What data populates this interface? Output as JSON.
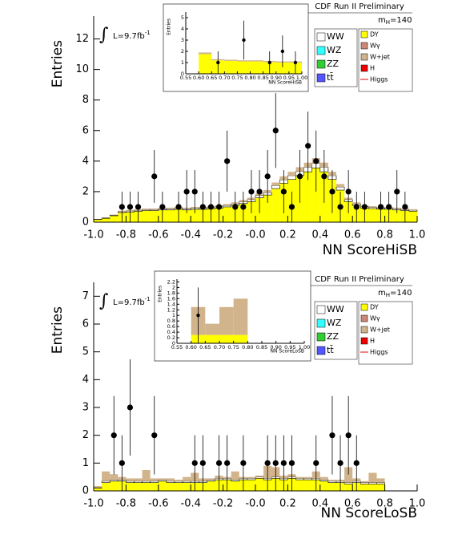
{
  "chart_data": [
    {
      "type": "stacked-histogram",
      "title": "CDF Run II Preliminary",
      "x_label": "NN ScoreHiSB",
      "y_label": "Entries",
      "mass_label": {
        "symbol": "m",
        "subscript": "H",
        "value": "=140"
      },
      "lumi_label": {
        "integral": "∫",
        "text": "L=9.7fb",
        "superscript": "-1"
      },
      "bins": [
        -1,
        -0.95,
        -0.9,
        -0.85,
        -0.8,
        -0.75,
        -0.7,
        -0.65,
        -0.6,
        -0.55,
        -0.5,
        -0.45,
        -0.4,
        -0.35,
        -0.3,
        -0.25,
        -0.2,
        -0.15,
        -0.1,
        -0.05,
        0,
        0.05,
        0.1,
        0.15,
        0.2,
        0.25,
        0.3,
        0.35,
        0.4,
        0.45,
        0.5,
        0.55,
        0.6,
        0.65,
        0.7,
        0.75,
        0.8,
        0.85,
        0.9,
        0.95,
        1
      ],
      "series": [
        {
          "name": "DY",
          "color": "#ffff00",
          "values": [
            0.17,
            0.25,
            0.42,
            0.63,
            0.67,
            0.71,
            0.76,
            0.76,
            0.8,
            0.8,
            0.84,
            0.8,
            0.84,
            0.84,
            0.88,
            0.92,
            1.0,
            1.1,
            1.22,
            1.35,
            1.6,
            1.78,
            2.2,
            2.55,
            2.8,
            3.05,
            3.3,
            3.55,
            3.3,
            2.8,
            2.1,
            1.35,
            1.1,
            0.93,
            0.89,
            0.85,
            0.85,
            0.8,
            0.76,
            0.72
          ]
        },
        {
          "name": "WW",
          "color": "#ffffff",
          "values": [
            0.02,
            0.03,
            0.04,
            0.06,
            0.07,
            0.07,
            0.07,
            0.07,
            0.08,
            0.08,
            0.08,
            0.08,
            0.08,
            0.08,
            0.09,
            0.09,
            0.1,
            0.1,
            0.12,
            0.13,
            0.15,
            0.16,
            0.2,
            0.22,
            0.25,
            0.27,
            0.3,
            0.3,
            0.3,
            0.25,
            0.2,
            0.13,
            0.1,
            0.09,
            0.08,
            0.08,
            0.08,
            0.08,
            0.07,
            0.07
          ]
        },
        {
          "name": "W+jet",
          "color": "#d2b48c",
          "values": [
            0.01,
            0.02,
            0.04,
            0.06,
            0.06,
            0.07,
            0.07,
            0.07,
            0.07,
            0.07,
            0.08,
            0.07,
            0.08,
            0.08,
            0.08,
            0.09,
            0.1,
            0.1,
            0.11,
            0.12,
            0.15,
            0.16,
            0.2,
            0.23,
            0.25,
            0.28,
            0.3,
            0.35,
            0.3,
            0.25,
            0.2,
            0.12,
            0.1,
            0.08,
            0.08,
            0.07,
            0.07,
            0.07,
            0.07,
            0.06
          ]
        }
      ],
      "legend_extra": [
        {
          "name": "WZ",
          "color": "#33ffff"
        },
        {
          "name": "ZZ",
          "color": "#33cc33"
        },
        {
          "name": "tt̄",
          "color": "#5555ff"
        },
        {
          "name": "Wγ",
          "color": "#cc8877"
        },
        {
          "name": "H",
          "color": "#ee0000"
        },
        {
          "name": "Higgs",
          "color": "#ee0000"
        }
      ],
      "data": {
        "values": [
          null,
          null,
          null,
          1,
          1,
          1,
          null,
          3,
          1,
          null,
          1,
          2,
          2,
          1,
          1,
          1,
          4,
          1,
          1,
          2,
          2,
          3,
          6,
          2,
          1,
          3,
          5,
          4,
          3,
          2,
          1,
          2,
          1,
          1,
          null,
          1,
          1,
          2,
          1,
          null
        ],
        "errors": [
          null,
          null,
          null,
          1,
          1,
          1,
          null,
          1.73,
          1,
          null,
          1,
          1.41,
          1.41,
          1,
          1,
          1,
          2,
          1,
          1,
          1.41,
          1.41,
          1.73,
          2.45,
          1.41,
          1,
          1.73,
          2.24,
          2,
          1.73,
          1.41,
          1,
          1.41,
          1,
          1,
          null,
          1,
          1,
          1.41,
          1,
          null
        ]
      },
      "xlim": [
        -1,
        1
      ],
      "ylim": [
        0,
        13.5
      ],
      "xticks": [
        {
          "value": -1,
          "label": "-1.0"
        },
        -0.8,
        -0.6,
        -0.4,
        -0.2,
        {
          "value": 0,
          "label": "-0.0"
        },
        0.2,
        0.4,
        0.6,
        0.8,
        {
          "value": 1,
          "label": "1.0"
        }
      ],
      "yticks": [
        0,
        2,
        4,
        6,
        8,
        10,
        12
      ]
    },
    {
      "type": "stacked-histogram",
      "x_label": "NN ScoreHiSB",
      "y_label": "Entries",
      "bins": [
        0.55,
        0.6,
        0.65,
        0.7,
        0.75,
        0.8,
        0.85,
        0.9,
        0.95,
        1
      ],
      "series": [
        {
          "color": "#ffff00",
          "values": [
            0,
            1.75,
            1.2,
            1.15,
            1.1,
            1.1,
            1.05,
            1.0,
            1.0
          ]
        },
        {
          "color": "#d2b48c",
          "values": [
            0,
            0.15,
            0.1,
            0.1,
            0.1,
            0.1,
            0.1,
            0.1,
            0.1
          ]
        }
      ],
      "data": {
        "values": [
          null,
          null,
          1,
          null,
          3,
          null,
          1,
          2,
          1
        ],
        "errors": [
          null,
          null,
          1,
          null,
          1.73,
          null,
          1,
          1.41,
          1
        ]
      },
      "xlim": [
        0.55,
        1
      ],
      "ylim": [
        0,
        5.5
      ],
      "xticks": [
        0.55,
        {
          "value": 0.6,
          "label": "0.60"
        },
        0.65,
        {
          "value": 0.7,
          "label": "0.70"
        },
        0.75,
        {
          "value": 0.8,
          "label": "0.80"
        },
        0.85,
        {
          "value": 0.9,
          "label": "0.90"
        },
        0.95,
        {
          "value": 1,
          "label": "1.00"
        }
      ],
      "yticks": [
        0,
        1,
        2,
        3,
        4,
        5
      ]
    },
    {
      "type": "stacked-histogram",
      "title": "CDF Run II Preliminary",
      "x_label": "NN ScoreLoSB",
      "y_label": "Entries",
      "mass_label": {
        "symbol": "m",
        "subscript": "H",
        "value": "=140"
      },
      "lumi_label": {
        "integral": "∫",
        "text": "L=9.7fb",
        "superscript": "-1"
      },
      "bins": [
        -1,
        -0.95,
        -0.9,
        -0.85,
        -0.8,
        -0.75,
        -0.7,
        -0.65,
        -0.6,
        -0.55,
        -0.5,
        -0.45,
        -0.4,
        -0.35,
        -0.3,
        -0.25,
        -0.2,
        -0.15,
        -0.1,
        -0.05,
        0,
        0.05,
        0.1,
        0.15,
        0.2,
        0.25,
        0.3,
        0.35,
        0.4,
        0.45,
        0.5,
        0.55,
        0.6,
        0.65,
        0.7,
        0.75,
        0.8,
        0.85,
        0.9,
        0.95,
        1
      ],
      "series": [
        {
          "name": "DY",
          "color": "#ffff00",
          "values": [
            0.1,
            0.3,
            0.35,
            0.35,
            0.3,
            0.3,
            0.3,
            0.3,
            0.35,
            0.3,
            0.3,
            0.3,
            0.3,
            0.3,
            0.35,
            0.4,
            0.4,
            0.35,
            0.4,
            0.4,
            0.45,
            0.4,
            0.45,
            0.4,
            0.45,
            0.4,
            0.4,
            0.4,
            0.35,
            0.3,
            0.3,
            0.25,
            0.3,
            0.25,
            0.25,
            0.25,
            0,
            0,
            0,
            0
          ]
        },
        {
          "name": "WW",
          "color": "#ffffff",
          "values": [
            0.02,
            0.05,
            0.05,
            0.05,
            0.05,
            0.05,
            0.05,
            0.05,
            0.05,
            0.05,
            0.05,
            0.05,
            0.05,
            0.05,
            0.05,
            0.05,
            0.05,
            0.05,
            0.05,
            0.05,
            0.05,
            0.05,
            0.05,
            0.05,
            0.05,
            0.05,
            0.05,
            0.05,
            0.05,
            0.05,
            0.05,
            0.05,
            0.05,
            0.05,
            0.05,
            0.05,
            0,
            0,
            0,
            0
          ]
        },
        {
          "name": "W+jet",
          "color": "#d2b48c",
          "values": [
            0.05,
            0.35,
            0.2,
            0.1,
            0.1,
            0.1,
            0.4,
            0.1,
            0.05,
            0.1,
            0.05,
            0.15,
            0.3,
            0.1,
            0.05,
            0.1,
            0.05,
            0.3,
            0.05,
            0.05,
            0.05,
            0.45,
            0.35,
            0.1,
            0.1,
            0.05,
            0.05,
            0.25,
            0.1,
            0.05,
            0.05,
            0.55,
            0.1,
            0.05,
            0.35,
            0.15,
            0,
            0,
            0,
            0
          ]
        }
      ],
      "legend_extra": [
        {
          "name": "WZ",
          "color": "#33ffff"
        },
        {
          "name": "ZZ",
          "color": "#33cc33"
        },
        {
          "name": "tt̄",
          "color": "#5555ff"
        },
        {
          "name": "Wγ",
          "color": "#cc8877"
        },
        {
          "name": "H",
          "color": "#ee0000"
        },
        {
          "name": "Higgs",
          "color": "#ee0000"
        }
      ],
      "data": {
        "values": [
          null,
          null,
          2,
          1,
          3,
          null,
          null,
          2,
          null,
          null,
          null,
          null,
          1,
          1,
          null,
          1,
          1,
          null,
          1,
          null,
          null,
          1,
          1,
          1,
          1,
          null,
          null,
          1,
          null,
          2,
          1,
          2,
          1,
          null,
          null,
          null,
          null,
          null,
          null,
          null
        ],
        "errors": [
          null,
          null,
          1.41,
          1,
          1.73,
          null,
          null,
          1.41,
          null,
          null,
          null,
          null,
          1,
          1,
          null,
          1,
          1,
          null,
          1,
          null,
          null,
          1,
          1,
          1,
          1,
          null,
          null,
          1,
          null,
          1.41,
          1,
          1.41,
          1,
          null,
          null,
          null,
          null,
          null,
          null,
          null
        ]
      },
      "xlim": [
        -1,
        1
      ],
      "ylim": [
        0,
        7.5
      ],
      "xticks": [
        {
          "value": -1,
          "label": "-1.0"
        },
        -0.8,
        -0.6,
        -0.4,
        -0.2,
        {
          "value": 0,
          "label": "-0.0"
        },
        0.2,
        0.4,
        0.6,
        0.8,
        {
          "value": 1,
          "label": "1.0"
        }
      ],
      "yticks": [
        0,
        1,
        2,
        3,
        4,
        5,
        6,
        7
      ]
    },
    {
      "type": "stacked-histogram",
      "x_label": "NN ScoreLoSB",
      "y_label": "Entries",
      "bins": [
        0.55,
        0.6,
        0.65,
        0.7,
        0.75,
        0.8,
        0.85,
        0.9,
        0.95,
        1
      ],
      "series": [
        {
          "color": "#ffff00",
          "values": [
            0,
            0.3,
            0.3,
            0.3,
            0.3,
            0,
            0,
            0,
            0
          ]
        },
        {
          "color": "#d2b48c",
          "values": [
            0,
            1.0,
            0.4,
            1.0,
            1.3,
            0,
            0,
            0,
            0
          ]
        }
      ],
      "data": {
        "values": [
          null,
          1,
          null,
          null,
          null,
          null,
          null,
          null,
          null
        ],
        "errors": [
          null,
          1,
          null,
          null,
          null,
          null,
          null,
          null,
          null
        ]
      },
      "xlim": [
        0.55,
        1
      ],
      "ylim": [
        0,
        2.3
      ],
      "xticks": [
        0.55,
        {
          "value": 0.6,
          "label": "0.60"
        },
        0.65,
        {
          "value": 0.7,
          "label": "0.70"
        },
        0.75,
        {
          "value": 0.8,
          "label": "0.80"
        },
        0.85,
        {
          "value": 0.9,
          "label": "0.90"
        },
        0.95,
        {
          "value": 1,
          "label": "1.00"
        }
      ],
      "yticks": [
        0,
        0.2,
        0.4,
        0.6,
        0.8,
        1,
        1.2,
        1.4,
        1.6,
        1.8,
        2,
        2.2
      ]
    }
  ]
}
